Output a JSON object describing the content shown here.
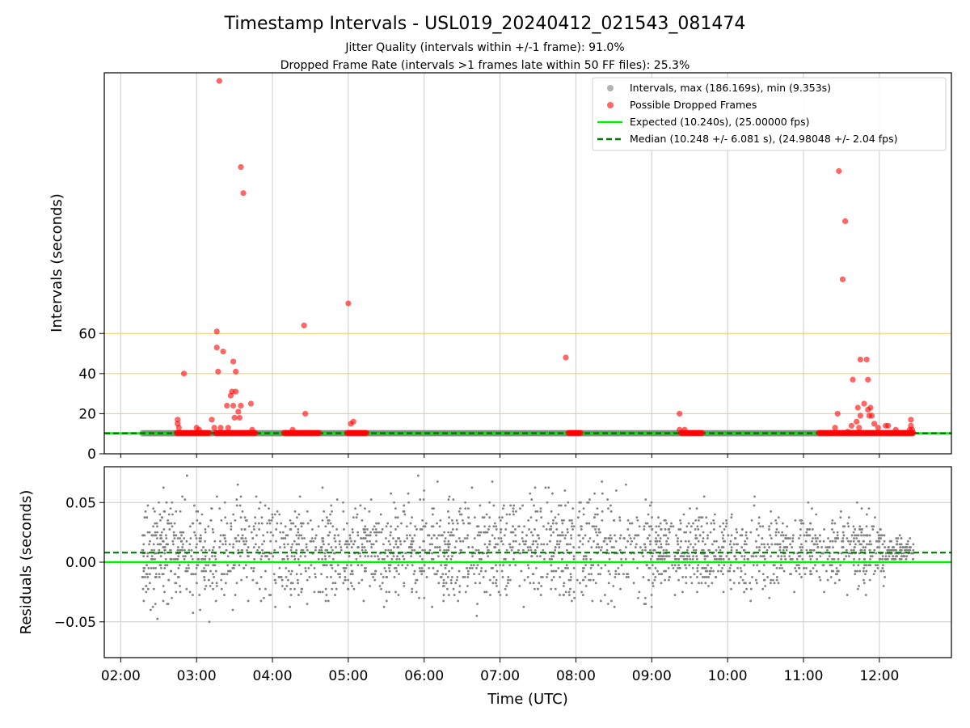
{
  "title": "Timestamp Intervals - USL019_20240412_021543_081474",
  "subtitle_1": "Jitter Quality (intervals within +/-1 frame): 91.0%",
  "subtitle_2": "Dropped Frame Rate (intervals >1 frames late within 50 FF files): 25.3%",
  "xlabel": "Time (UTC)",
  "colors": {
    "intervals": "#808080",
    "dropped": "#ff0000",
    "expected": "#00ee00",
    "median": "#007a00",
    "threshold": "#f5c242",
    "grid": "#cccccc"
  },
  "chart_data": [
    {
      "type": "scatter",
      "panel": "intervals",
      "ylabel": "Intervals (seconds)",
      "xlim": [
        "01:47",
        "12:57"
      ],
      "ylim": [
        0,
        190
      ],
      "x_ticks": [
        "02:00",
        "03:00",
        "04:00",
        "05:00",
        "06:00",
        "07:00",
        "08:00",
        "09:00",
        "10:00",
        "11:00",
        "12:00"
      ],
      "y_ticks": [
        0,
        20,
        40,
        60
      ],
      "threshold_lines": [
        20,
        40,
        60
      ],
      "legend_placement": "top-right",
      "legend": [
        "Intervals, max (186.169s), min (9.353s)",
        "Possible Dropped Frames",
        "Expected (10.240s), (25.00000 fps)",
        "Median (10.248 +/- 6.081 s), (24.98048 +/- 2.04 fps)"
      ],
      "expected_value": 10.24,
      "median_value": 10.248,
      "intervals_range": [
        "02:17",
        "12:27"
      ],
      "intervals_level": 10.25,
      "dropped_clusters": [
        {
          "start": "02:44",
          "end": "03:10"
        },
        {
          "start": "03:15",
          "end": "03:47"
        },
        {
          "start": "04:09",
          "end": "04:37"
        },
        {
          "start": "04:59",
          "end": "05:15"
        },
        {
          "start": "07:54",
          "end": "08:04"
        },
        {
          "start": "09:23",
          "end": "09:40"
        },
        {
          "start": "11:12",
          "end": "11:29"
        },
        {
          "start": "11:30",
          "end": "12:27"
        }
      ],
      "dropped_outliers": [
        {
          "t": "03:18",
          "v": 186
        },
        {
          "t": "03:35",
          "v": 143
        },
        {
          "t": "03:37",
          "v": 130
        },
        {
          "t": "05:00",
          "v": 75
        },
        {
          "t": "04:25",
          "v": 64
        },
        {
          "t": "03:16",
          "v": 61
        },
        {
          "t": "03:16",
          "v": 53
        },
        {
          "t": "03:21",
          "v": 51
        },
        {
          "t": "03:29",
          "v": 46
        },
        {
          "t": "03:17",
          "v": 41
        },
        {
          "t": "03:31",
          "v": 41
        },
        {
          "t": "02:50",
          "v": 40
        },
        {
          "t": "03:28",
          "v": 31
        },
        {
          "t": "03:31",
          "v": 31
        },
        {
          "t": "03:27",
          "v": 29
        },
        {
          "t": "03:24",
          "v": 24
        },
        {
          "t": "03:29",
          "v": 24
        },
        {
          "t": "03:35",
          "v": 24
        },
        {
          "t": "03:43",
          "v": 25
        },
        {
          "t": "03:33",
          "v": 21
        },
        {
          "t": "03:30",
          "v": 18
        },
        {
          "t": "03:34",
          "v": 18
        },
        {
          "t": "03:12",
          "v": 17
        },
        {
          "t": "02:45",
          "v": 17
        },
        {
          "t": "02:45",
          "v": 15
        },
        {
          "t": "02:46",
          "v": 13
        },
        {
          "t": "03:00",
          "v": 13
        },
        {
          "t": "03:02",
          "v": 12
        },
        {
          "t": "03:14",
          "v": 13
        },
        {
          "t": "03:19",
          "v": 13
        },
        {
          "t": "03:25",
          "v": 13
        },
        {
          "t": "03:44",
          "v": 12
        },
        {
          "t": "04:26",
          "v": 20
        },
        {
          "t": "04:16",
          "v": 12
        },
        {
          "t": "05:02",
          "v": 15
        },
        {
          "t": "05:04",
          "v": 16
        },
        {
          "t": "07:52",
          "v": 48
        },
        {
          "t": "09:22",
          "v": 20
        },
        {
          "t": "09:22",
          "v": 12
        },
        {
          "t": "09:26",
          "v": 12
        },
        {
          "t": "11:28",
          "v": 141
        },
        {
          "t": "11:33",
          "v": 116
        },
        {
          "t": "11:31",
          "v": 87
        },
        {
          "t": "11:45",
          "v": 47
        },
        {
          "t": "11:50",
          "v": 47
        },
        {
          "t": "11:39",
          "v": 37
        },
        {
          "t": "11:51",
          "v": 37
        },
        {
          "t": "11:48",
          "v": 25
        },
        {
          "t": "11:43",
          "v": 23
        },
        {
          "t": "11:51",
          "v": 22
        },
        {
          "t": "11:53",
          "v": 23
        },
        {
          "t": "11:45",
          "v": 19
        },
        {
          "t": "11:52",
          "v": 19
        },
        {
          "t": "11:54",
          "v": 19
        },
        {
          "t": "11:27",
          "v": 20
        },
        {
          "t": "11:42",
          "v": 16
        },
        {
          "t": "11:38",
          "v": 14
        },
        {
          "t": "11:56",
          "v": 15
        },
        {
          "t": "11:59",
          "v": 13
        },
        {
          "t": "12:05",
          "v": 14
        },
        {
          "t": "12:07",
          "v": 14
        },
        {
          "t": "12:25",
          "v": 17
        },
        {
          "t": "12:25",
          "v": 14
        },
        {
          "t": "11:25",
          "v": 13
        },
        {
          "t": "11:44",
          "v": 13
        },
        {
          "t": "12:13",
          "v": 12
        },
        {
          "t": "12:26",
          "v": 12
        },
        {
          "t": "11:35",
          "v": 11
        },
        {
          "t": "12:24",
          "v": 12
        }
      ]
    },
    {
      "type": "scatter",
      "panel": "residuals",
      "ylabel": "Residuals (seconds)",
      "xlim": [
        "01:47",
        "12:57"
      ],
      "ylim": [
        -0.08,
        0.08
      ],
      "y_ticks": [
        -0.05,
        0.0,
        0.05
      ],
      "y_tick_labels": [
        "−0.05",
        "0.00",
        "0.05"
      ],
      "x_ticks": [
        "02:00",
        "03:00",
        "04:00",
        "05:00",
        "06:00",
        "07:00",
        "08:00",
        "09:00",
        "10:00",
        "11:00",
        "12:00"
      ],
      "expected_residual": 0.0,
      "median_residual": 0.008,
      "range": [
        "02:17",
        "12:27"
      ],
      "approx_points": 2600
    }
  ]
}
